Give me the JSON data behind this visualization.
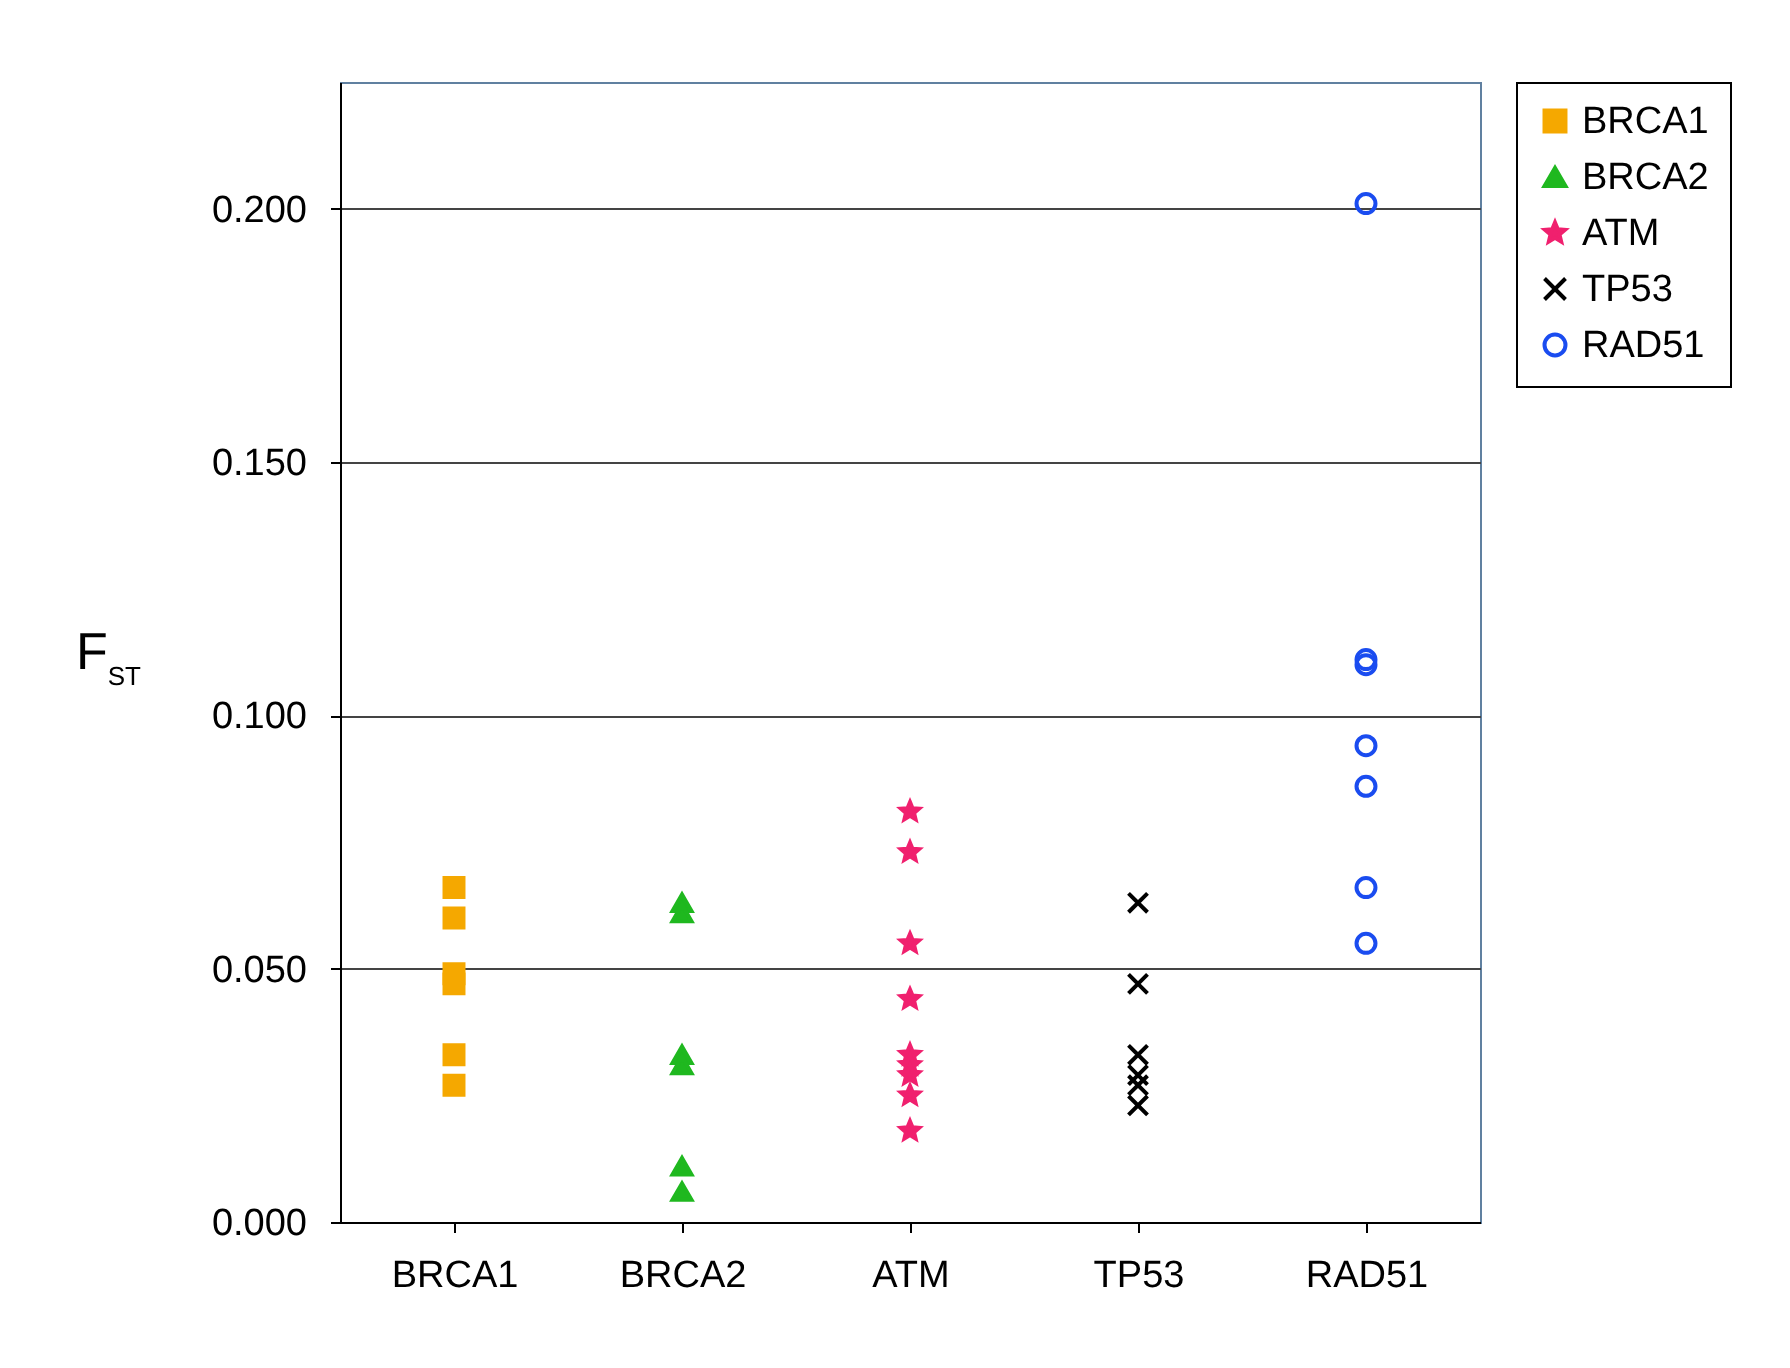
{
  "chart_data": {
    "type": "scatter",
    "ylabel": "F$_{ST}$",
    "categories": [
      "BRCA1",
      "BRCA2",
      "ATM",
      "TP53",
      "RAD51"
    ],
    "ylim": [
      0,
      0.225
    ],
    "yticks": [
      {
        "value": 0,
        "label": "0.000"
      },
      {
        "value": 0.05,
        "label": "0.050"
      },
      {
        "value": 0.1,
        "label": "0.100"
      },
      {
        "value": 0.15,
        "label": "0.150"
      },
      {
        "value": 0.2,
        "label": "0.200"
      }
    ],
    "grid": "y",
    "legend": "right",
    "series": [
      {
        "name": "BRCA1",
        "color": "#f5a800",
        "marker": "square",
        "x": [
          "BRCA1",
          "BRCA1",
          "BRCA1",
          "BRCA1",
          "BRCA1",
          "BRCA1"
        ],
        "values": [
          0.066,
          0.06,
          0.049,
          0.047,
          0.033,
          0.027
        ]
      },
      {
        "name": "BRCA2",
        "color": "#1fb81f",
        "marker": "triangle",
        "x": [
          "BRCA2",
          "BRCA2",
          "BRCA2",
          "BRCA2",
          "BRCA2",
          "BRCA2"
        ],
        "values": [
          0.063,
          0.061,
          0.033,
          0.031,
          0.011,
          0.006
        ]
      },
      {
        "name": "ATM",
        "color": "#f0206e",
        "marker": "star",
        "x": [
          "ATM",
          "ATM",
          "ATM",
          "ATM",
          "ATM",
          "ATM",
          "ATM",
          "ATM",
          "ATM"
        ],
        "values": [
          0.081,
          0.073,
          0.055,
          0.044,
          0.033,
          0.031,
          0.029,
          0.025,
          0.018
        ]
      },
      {
        "name": "TP53",
        "color": "#000000",
        "marker": "cross",
        "x": [
          "TP53",
          "TP53",
          "TP53",
          "TP53",
          "TP53",
          "TP53"
        ],
        "values": [
          0.063,
          0.047,
          0.033,
          0.029,
          0.027,
          0.023
        ]
      },
      {
        "name": "RAD51",
        "color": "#1a4cf0",
        "marker": "circle",
        "x": [
          "RAD51",
          "RAD51",
          "RAD51",
          "RAD51",
          "RAD51",
          "RAD51",
          "RAD51"
        ],
        "values": [
          0.201,
          0.111,
          0.11,
          0.094,
          0.086,
          0.066,
          0.055
        ]
      }
    ]
  }
}
